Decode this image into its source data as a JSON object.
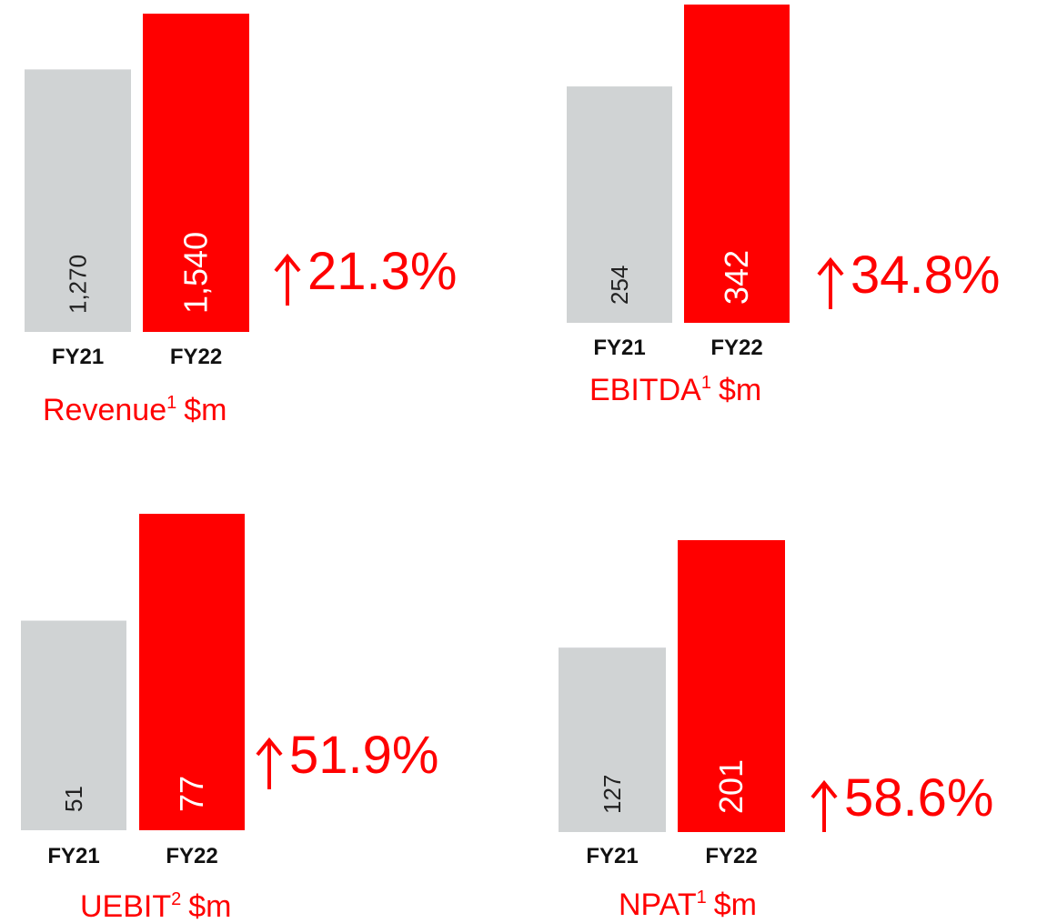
{
  "chart_data": [
    {
      "type": "bar",
      "title": "Revenue",
      "title_note": "1",
      "title_unit": "$m",
      "categories": [
        "FY21",
        "FY22"
      ],
      "values": [
        1270,
        1540
      ],
      "value_labels": [
        "1,270",
        "1,540"
      ],
      "colors": [
        "#d0d3d4",
        "#ff0000"
      ],
      "annotation": "21.3%"
    },
    {
      "type": "bar",
      "title": "EBITDA",
      "title_note": "1",
      "title_unit": "$m",
      "categories": [
        "FY21",
        "FY22"
      ],
      "values": [
        254,
        342
      ],
      "colors": [
        "#d0d3d4",
        "#ff0000"
      ],
      "annotation": "34.8%"
    },
    {
      "type": "bar",
      "title": "UEBIT",
      "title_note": "2",
      "title_unit": "$m",
      "categories": [
        "FY21",
        "FY22"
      ],
      "values": [
        51,
        77
      ],
      "colors": [
        "#d0d3d4",
        "#ff0000"
      ],
      "annotation": "51.9%"
    },
    {
      "type": "bar",
      "title": "NPAT",
      "title_note": "1",
      "title_unit": "$m",
      "categories": [
        "FY21",
        "FY22"
      ],
      "values": [
        127,
        201
      ],
      "colors": [
        "#d0d3d4",
        "#ff0000"
      ],
      "annotation": "58.6%"
    }
  ]
}
